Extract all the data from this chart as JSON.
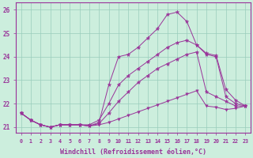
{
  "xlabel": "Windchill (Refroidissement éolien,°C)",
  "x": [
    0,
    1,
    2,
    3,
    4,
    5,
    6,
    7,
    8,
    9,
    10,
    11,
    12,
    13,
    14,
    15,
    16,
    17,
    18,
    19,
    20,
    21,
    22,
    23
  ],
  "line_min": [
    21.6,
    21.3,
    21.1,
    21.0,
    21.1,
    21.1,
    21.1,
    21.05,
    21.1,
    21.2,
    21.35,
    21.5,
    21.65,
    21.8,
    21.95,
    22.1,
    22.25,
    22.4,
    22.55,
    21.9,
    21.85,
    21.75,
    21.8,
    21.9
  ],
  "line_avg1": [
    21.6,
    21.3,
    21.1,
    21.0,
    21.1,
    21.1,
    21.1,
    21.05,
    21.15,
    21.6,
    22.1,
    22.5,
    22.9,
    23.2,
    23.5,
    23.7,
    23.9,
    24.1,
    24.2,
    22.5,
    22.3,
    22.1,
    21.9,
    21.9
  ],
  "line_avg2": [
    21.6,
    21.3,
    21.1,
    21.0,
    21.1,
    21.1,
    21.1,
    21.1,
    21.3,
    22.0,
    22.8,
    23.2,
    23.5,
    23.8,
    24.1,
    24.4,
    24.6,
    24.7,
    24.5,
    24.1,
    24.0,
    22.3,
    22.0,
    21.9
  ],
  "line_max": [
    21.6,
    21.3,
    21.1,
    21.0,
    21.1,
    21.1,
    21.1,
    21.05,
    21.2,
    22.8,
    24.0,
    24.1,
    24.4,
    24.8,
    25.2,
    25.8,
    25.9,
    25.5,
    24.5,
    24.15,
    24.05,
    22.6,
    22.15,
    21.9
  ],
  "bg_color": "#cceedd",
  "line_color": "#993399",
  "grid_color": "#99ccbb",
  "ylim": [
    20.75,
    26.3
  ],
  "xlim": [
    -0.5,
    23.5
  ]
}
